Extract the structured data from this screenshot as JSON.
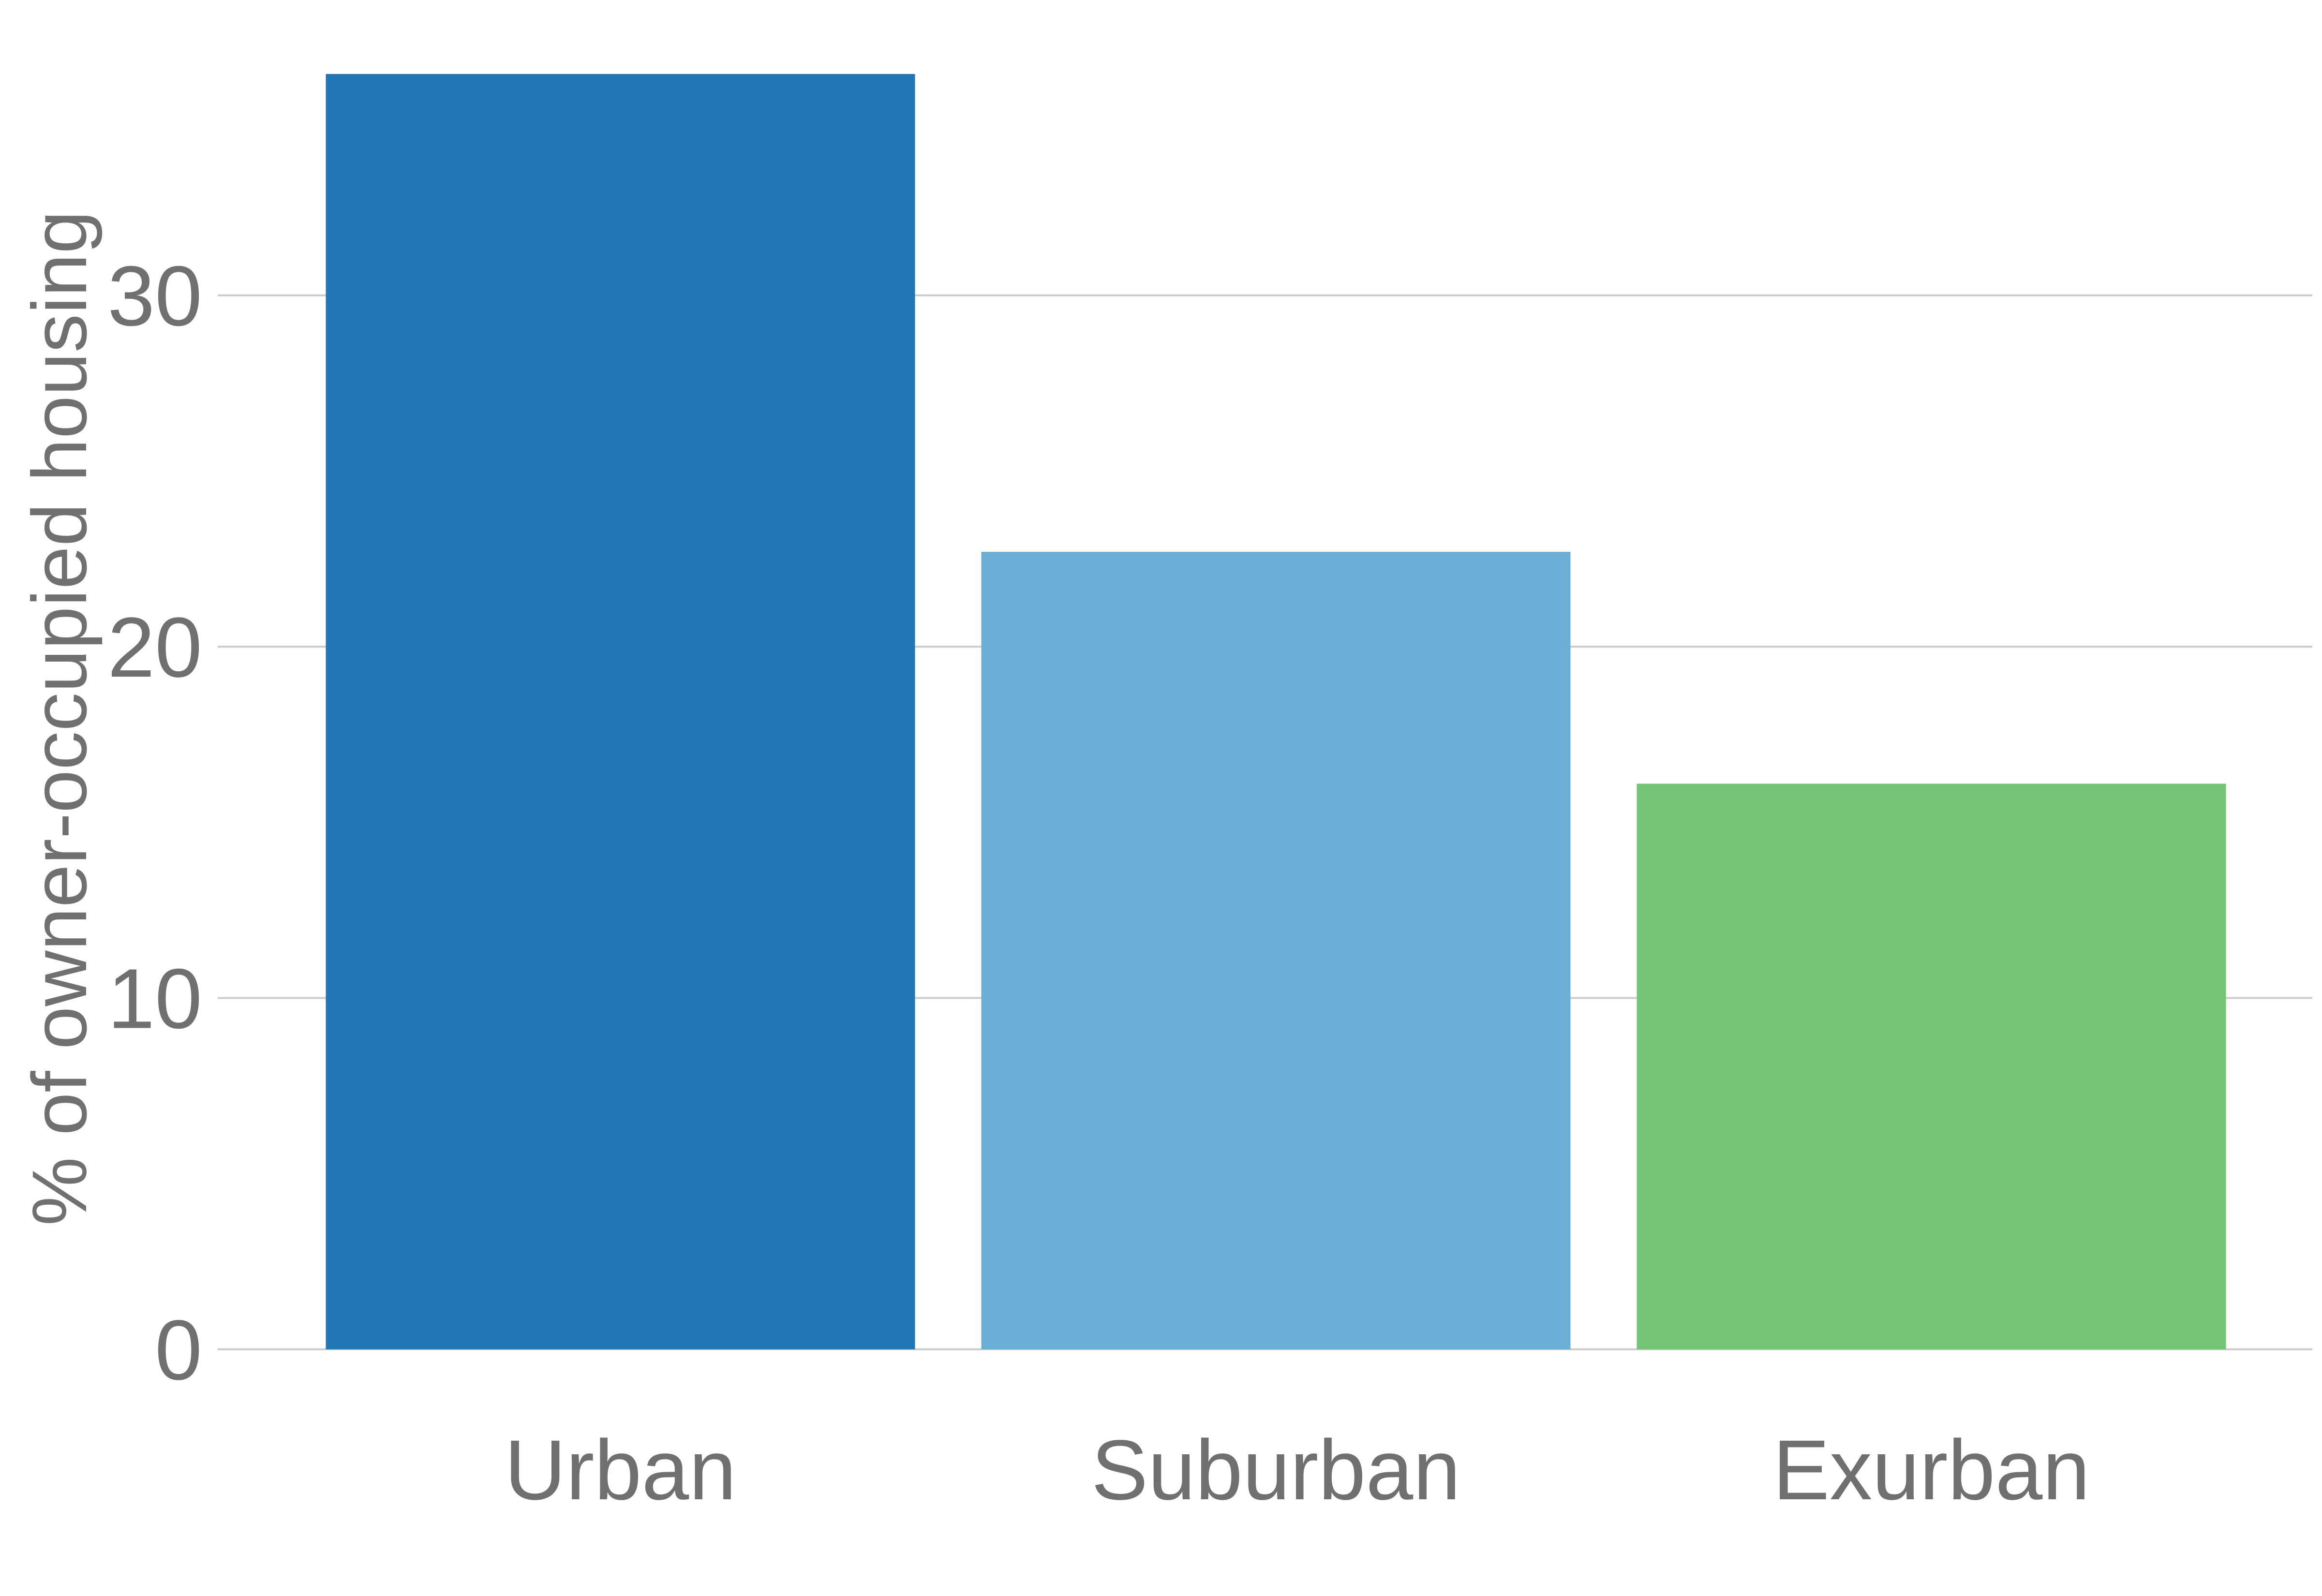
{
  "chart_data": {
    "type": "bar",
    "title": "",
    "xlabel": "",
    "ylabel": "% of owner-occupied housing",
    "categories": [
      "Urban",
      "Suburban",
      "Exurban"
    ],
    "values": [
      36.3,
      22.7,
      16.1
    ],
    "colors": [
      "#2077b4",
      "#6baed6",
      "#74c476"
    ],
    "ylim": [
      0,
      36.3
    ],
    "yticks": [
      0,
      10,
      20,
      30
    ],
    "ytick_labels": [
      "0",
      "10",
      "20",
      "30"
    ],
    "grid": true,
    "grid_axis": "y",
    "legend": false,
    "text_color": "#707070",
    "grid_color": "#cccccc"
  }
}
